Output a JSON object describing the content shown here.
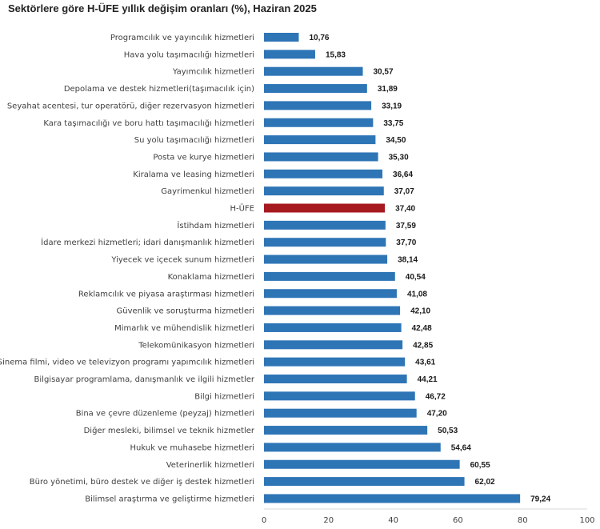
{
  "chart_data": {
    "type": "bar",
    "orientation": "horizontal",
    "title": "Sektörlere göre H-ÜFE yıllık değişim oranları (%), Haziran 2025",
    "xlabel": "",
    "ylabel": "",
    "xlim": [
      0,
      100
    ],
    "xticks": [
      0,
      20,
      40,
      60,
      80,
      100
    ],
    "grid": false,
    "bar_color": "#2e75b6",
    "highlight_color": "#a6191e",
    "highlight_category": "H-ÜFE",
    "categories": [
      "Programcılık ve yayıncılık hizmetleri",
      "Hava yolu taşımacılığı hizmetleri",
      "Yayımcılık hizmetleri",
      "Depolama ve destek hizmetleri(taşımacılık için)",
      "Seyahat acentesi, tur operatörü, diğer rezervasyon hizmetleri",
      "Kara taşımacılığı ve boru hattı taşımacılığı hizmetleri",
      "Su yolu taşımacılığı hizmetleri",
      "Posta ve kurye hizmetleri",
      "Kiralama ve leasing hizmetleri",
      "Gayrimenkul hizmetleri",
      "H-ÜFE",
      "İstihdam hizmetleri",
      "İdare merkezi hizmetleri; idari danışmanlık hizmetleri",
      "Yiyecek ve içecek sunum hizmetleri",
      "Konaklama hizmetleri",
      "Reklamcılık ve piyasa araştırması hizmetleri",
      "Güvenlik ve soruşturma hizmetleri",
      "Mimarlık ve mühendislik hizmetleri",
      "Telekomünikasyon hizmetleri",
      "Sinema filmi, video ve televizyon programı yapımcılık hizmetleri",
      "Bilgisayar programlama, danışmanlık ve ilgili hizmetler",
      "Bilgi hizmetleri",
      "Bina ve çevre düzenleme (peyzaj) hizmetleri",
      "Diğer mesleki, bilimsel ve teknik hizmetler",
      "Hukuk ve muhasebe hizmetleri",
      "Veterinerlik hizmetleri",
      "Büro yönetimi, büro destek ve diğer iş destek hizmetleri",
      "Bilimsel araştırma ve geliştirme hizmetleri"
    ],
    "values": [
      10.76,
      15.83,
      30.57,
      31.89,
      33.19,
      33.75,
      34.5,
      35.3,
      36.64,
      37.07,
      37.4,
      37.59,
      37.7,
      38.14,
      40.54,
      41.08,
      42.1,
      42.48,
      42.85,
      43.61,
      44.21,
      46.72,
      47.2,
      50.53,
      54.64,
      60.55,
      62.02,
      79.24
    ],
    "value_labels": [
      "10,76",
      "15,83",
      "30,57",
      "31,89",
      "33,19",
      "33,75",
      "34,50",
      "35,30",
      "36,64",
      "37,07",
      "37,40",
      "37,59",
      "37,70",
      "38,14",
      "40,54",
      "41,08",
      "42,10",
      "42,48",
      "42,85",
      "43,61",
      "44,21",
      "46,72",
      "47,20",
      "50,53",
      "54,64",
      "60,55",
      "62,02",
      "79,24"
    ]
  }
}
